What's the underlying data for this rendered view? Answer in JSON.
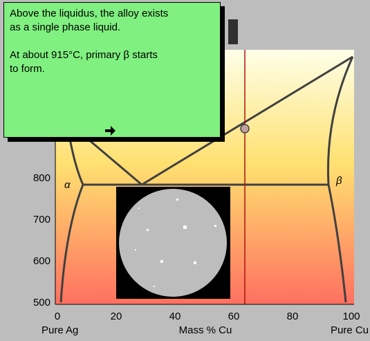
{
  "info_box": {
    "paragraphs": [
      "Above the liquidus, the alloy exists as a single phase liquid.",
      "At about 915°C, primary β starts to form."
    ]
  },
  "axes": {
    "xlabel": "Mass % Cu",
    "left_end": "Pure Ag",
    "right_end": "Pure Cu",
    "xticks": [
      0,
      20,
      40,
      60,
      80,
      100
    ],
    "yticks": [
      500,
      600,
      700,
      800
    ]
  },
  "phase_labels": {
    "left": "α",
    "right": "β"
  }
}
